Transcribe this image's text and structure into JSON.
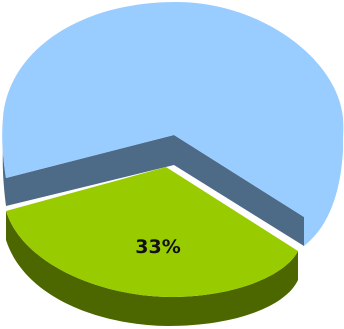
{
  "chart_data": {
    "type": "pie",
    "style": "3d-exploded",
    "slices": [
      {
        "value": 67,
        "label": "",
        "color": "#99ccff",
        "side_color": "#4d6a87"
      },
      {
        "value": 33,
        "label": "33%",
        "color": "#99cc00",
        "side_color": "#4c6600"
      }
    ]
  }
}
